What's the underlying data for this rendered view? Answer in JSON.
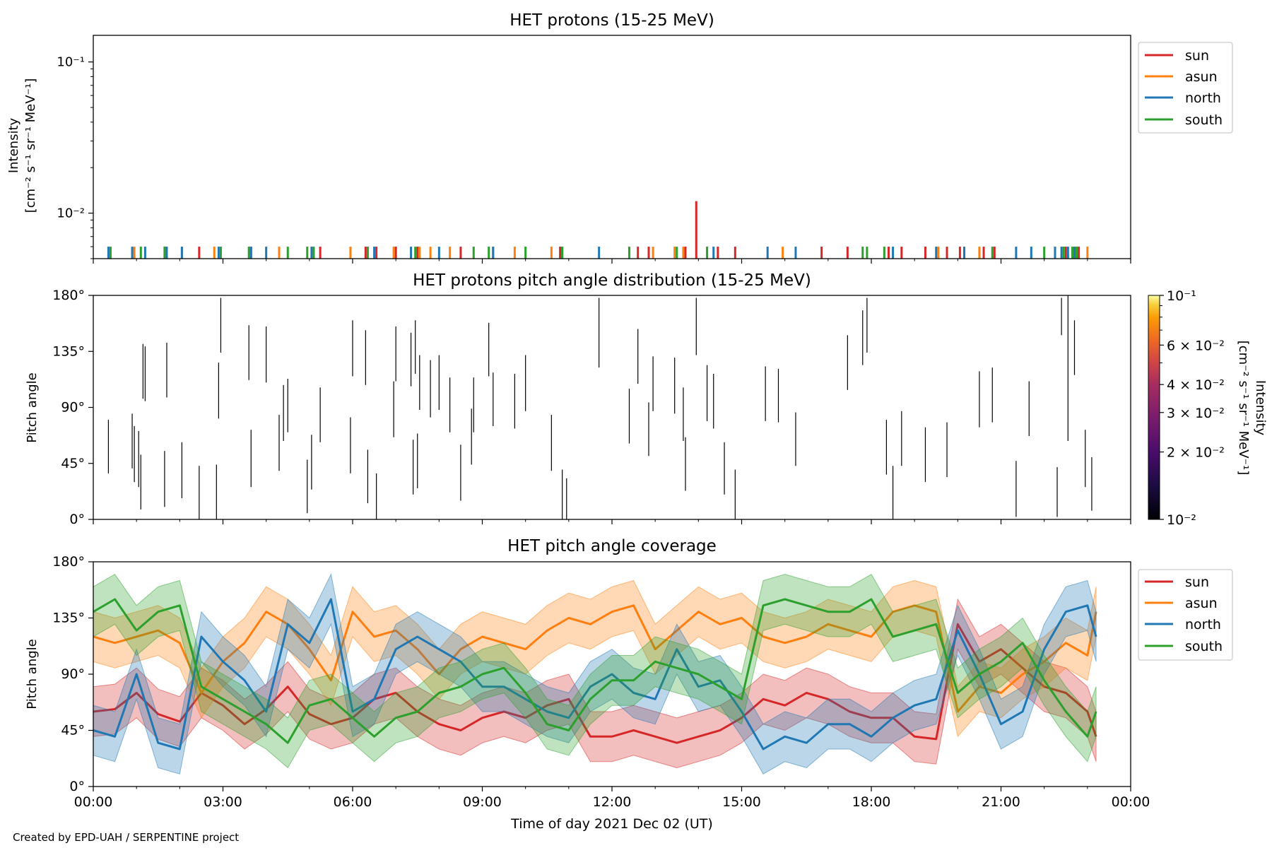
{
  "footer": {
    "credit": "Created by EPD-UAH / SERPENTINE project"
  },
  "colors": {
    "sun": "#d62728",
    "asun": "#ff7f0e",
    "north": "#1f77b4",
    "south": "#2ca02c"
  },
  "chart_data": [
    {
      "type": "bar",
      "title": "HET protons (15-25 MeV)",
      "ylabel_lines": [
        "Intensity",
        "[cm⁻² s⁻¹ sr⁻¹ MeV⁻¹]"
      ],
      "yscale": "log",
      "ylim": [
        0.005,
        0.15
      ],
      "yticks": [
        {
          "value": 0.01,
          "label": "10⁻²"
        },
        {
          "value": 0.1,
          "label": "10⁻¹"
        }
      ],
      "xlim": [
        0,
        24
      ],
      "legend": {
        "position": "top-right",
        "entries": [
          "sun",
          "asun",
          "north",
          "south"
        ]
      },
      "series": [
        {
          "name": "sun",
          "color": "#d62728",
          "x": [
            2.45,
            3.65,
            5.25,
            6.3,
            6.55,
            7.0,
            7.5,
            8.5,
            10.8,
            12.6,
            12.85,
            13.7,
            13.95,
            14.45,
            14.85,
            16.85,
            17.45,
            18.4,
            18.7,
            19.25,
            19.75,
            20.05,
            20.6,
            20.85,
            22.5,
            22.8
          ],
          "values": [
            0.006,
            0.006,
            0.006,
            0.006,
            0.006,
            0.006,
            0.006,
            0.006,
            0.006,
            0.006,
            0.006,
            0.006,
            0.012,
            0.006,
            0.006,
            0.006,
            0.006,
            0.006,
            0.006,
            0.006,
            0.006,
            0.006,
            0.006,
            0.006,
            0.006,
            0.006
          ]
        },
        {
          "name": "asun",
          "color": "#ff7f0e",
          "x": [
            0.95,
            1.65,
            2.05,
            2.8,
            4.3,
            5.95,
            6.95,
            7.55,
            7.8,
            8.25,
            9.25,
            9.75,
            10.6,
            12.95,
            13.45,
            13.65,
            15.95,
            19.55,
            20.5,
            22.7,
            23.0
          ],
          "values": [
            0.006,
            0.006,
            0.006,
            0.006,
            0.006,
            0.006,
            0.006,
            0.006,
            0.006,
            0.006,
            0.006,
            0.006,
            0.006,
            0.006,
            0.006,
            0.006,
            0.006,
            0.006,
            0.006,
            0.006,
            0.006
          ]
        },
        {
          "name": "north",
          "color": "#1f77b4",
          "x": [
            0.35,
            0.9,
            1.2,
            1.7,
            2.05,
            2.9,
            3.65,
            4.0,
            5.05,
            6.5,
            7.35,
            8.0,
            9.25,
            10.85,
            11.7,
            14.35,
            15.6,
            16.25,
            18.5,
            19.5,
            20.15,
            21.35,
            21.7,
            22.25,
            22.4,
            22.55,
            22.7
          ],
          "values": [
            0.006,
            0.006,
            0.006,
            0.006,
            0.006,
            0.006,
            0.006,
            0.006,
            0.006,
            0.006,
            0.006,
            0.006,
            0.006,
            0.006,
            0.006,
            0.006,
            0.006,
            0.006,
            0.006,
            0.006,
            0.006,
            0.006,
            0.006,
            0.006,
            0.006,
            0.006,
            0.006
          ]
        },
        {
          "name": "south",
          "color": "#2ca02c",
          "x": [
            0.4,
            1.1,
            1.65,
            2.95,
            3.6,
            4.5,
            4.95,
            5.1,
            6.35,
            7.45,
            8.8,
            9.15,
            10.0,
            10.85,
            12.4,
            13.5,
            14.2,
            17.8,
            17.9,
            18.3,
            20.8,
            22.0,
            22.45,
            22.65,
            22.75
          ],
          "values": [
            0.006,
            0.006,
            0.006,
            0.006,
            0.006,
            0.006,
            0.006,
            0.006,
            0.006,
            0.006,
            0.006,
            0.006,
            0.006,
            0.006,
            0.006,
            0.006,
            0.006,
            0.006,
            0.006,
            0.006,
            0.006,
            0.006,
            0.006,
            0.006,
            0.006
          ]
        }
      ]
    },
    {
      "type": "heatmap",
      "title": "HET protons pitch angle distribution (15-25 MeV)",
      "ylabel": "Pitch angle",
      "ylim": [
        0,
        180
      ],
      "yticks": [
        "0°",
        "45°",
        "90°",
        "135°",
        "180°"
      ],
      "xlim": [
        0,
        24
      ],
      "colorbar": {
        "label_lines": [
          "Intensity",
          "[cm⁻² s⁻¹ sr⁻¹ MeV⁻¹]"
        ],
        "scale": "log",
        "range": [
          0.01,
          0.1
        ],
        "ticks": [
          {
            "value": 0.01,
            "label": "10⁻²"
          },
          {
            "value": 0.02,
            "label": "2 × 10⁻²"
          },
          {
            "value": 0.03,
            "label": "3 × 10⁻²"
          },
          {
            "value": 0.04,
            "label": "4 × 10⁻²"
          },
          {
            "value": 0.06,
            "label": "6 × 10⁻²"
          },
          {
            "value": 0.1,
            "label": "10⁻¹"
          }
        ],
        "colormap": "inferno"
      },
      "segments": [
        {
          "t": 0.35,
          "lo": 37,
          "hi": 80
        },
        {
          "t": 0.9,
          "lo": 41,
          "hi": 85
        },
        {
          "t": 0.95,
          "lo": 30,
          "hi": 75
        },
        {
          "t": 1.05,
          "lo": 26,
          "hi": 71
        },
        {
          "t": 1.1,
          "lo": 8,
          "hi": 52
        },
        {
          "t": 1.15,
          "lo": 97,
          "hi": 141
        },
        {
          "t": 1.2,
          "lo": 95,
          "hi": 139
        },
        {
          "t": 1.65,
          "lo": 10,
          "hi": 55
        },
        {
          "t": 1.7,
          "lo": 98,
          "hi": 142
        },
        {
          "t": 2.05,
          "lo": 17,
          "hi": 62
        },
        {
          "t": 2.45,
          "lo": 0,
          "hi": 43
        },
        {
          "t": 2.85,
          "lo": 0,
          "hi": 44
        },
        {
          "t": 2.9,
          "lo": 81,
          "hi": 126
        },
        {
          "t": 2.95,
          "lo": 134,
          "hi": 178
        },
        {
          "t": 3.6,
          "lo": 112,
          "hi": 156
        },
        {
          "t": 3.65,
          "lo": 26,
          "hi": 72
        },
        {
          "t": 4.0,
          "lo": 110,
          "hi": 155
        },
        {
          "t": 4.3,
          "lo": 39,
          "hi": 84
        },
        {
          "t": 4.4,
          "lo": 63,
          "hi": 108
        },
        {
          "t": 4.5,
          "lo": 70,
          "hi": 113
        },
        {
          "t": 4.95,
          "lo": 5,
          "hi": 48
        },
        {
          "t": 5.05,
          "lo": 24,
          "hi": 68
        },
        {
          "t": 5.25,
          "lo": 62,
          "hi": 106
        },
        {
          "t": 5.95,
          "lo": 37,
          "hi": 82
        },
        {
          "t": 6.0,
          "lo": 115,
          "hi": 160
        },
        {
          "t": 6.3,
          "lo": 108,
          "hi": 152
        },
        {
          "t": 6.35,
          "lo": 13,
          "hi": 56
        },
        {
          "t": 6.55,
          "lo": 0,
          "hi": 37
        },
        {
          "t": 6.95,
          "lo": 66,
          "hi": 111
        },
        {
          "t": 7.0,
          "lo": 111,
          "hi": 155
        },
        {
          "t": 7.35,
          "lo": 107,
          "hi": 150
        },
        {
          "t": 7.4,
          "lo": 20,
          "hi": 64
        },
        {
          "t": 7.45,
          "lo": 117,
          "hi": 160
        },
        {
          "t": 7.5,
          "lo": 25,
          "hi": 69
        },
        {
          "t": 7.55,
          "lo": 88,
          "hi": 132
        },
        {
          "t": 7.8,
          "lo": 82,
          "hi": 128
        },
        {
          "t": 8.0,
          "lo": 88,
          "hi": 132
        },
        {
          "t": 8.25,
          "lo": 70,
          "hi": 114
        },
        {
          "t": 8.5,
          "lo": 15,
          "hi": 60
        },
        {
          "t": 8.75,
          "lo": 44,
          "hi": 89
        },
        {
          "t": 8.8,
          "lo": 70,
          "hi": 114
        },
        {
          "t": 9.15,
          "lo": 115,
          "hi": 158
        },
        {
          "t": 9.25,
          "lo": 75,
          "hi": 118
        },
        {
          "t": 9.75,
          "lo": 73,
          "hi": 117
        },
        {
          "t": 10.0,
          "lo": 87,
          "hi": 132
        },
        {
          "t": 10.6,
          "lo": 39,
          "hi": 84
        },
        {
          "t": 10.85,
          "lo": 0,
          "hi": 40
        },
        {
          "t": 10.95,
          "lo": 0,
          "hi": 33
        },
        {
          "t": 11.7,
          "lo": 122,
          "hi": 178
        },
        {
          "t": 12.4,
          "lo": 61,
          "hi": 105
        },
        {
          "t": 12.6,
          "lo": 109,
          "hi": 153
        },
        {
          "t": 12.85,
          "lo": 51,
          "hi": 94
        },
        {
          "t": 12.95,
          "lo": 87,
          "hi": 131
        },
        {
          "t": 13.45,
          "lo": 85,
          "hi": 130
        },
        {
          "t": 13.65,
          "lo": 63,
          "hi": 106
        },
        {
          "t": 13.7,
          "lo": 23,
          "hi": 66
        },
        {
          "t": 13.95,
          "lo": 132,
          "hi": 178
        },
        {
          "t": 14.2,
          "lo": 79,
          "hi": 124
        },
        {
          "t": 14.35,
          "lo": 73,
          "hi": 117
        },
        {
          "t": 14.6,
          "lo": 20,
          "hi": 62
        },
        {
          "t": 14.85,
          "lo": 0,
          "hi": 40
        },
        {
          "t": 15.55,
          "lo": 79,
          "hi": 123
        },
        {
          "t": 15.85,
          "lo": 78,
          "hi": 121
        },
        {
          "t": 16.25,
          "lo": 43,
          "hi": 86
        },
        {
          "t": 17.45,
          "lo": 104,
          "hi": 148
        },
        {
          "t": 17.8,
          "lo": 124,
          "hi": 168
        },
        {
          "t": 17.9,
          "lo": 134,
          "hi": 178
        },
        {
          "t": 18.35,
          "lo": 36,
          "hi": 80
        },
        {
          "t": 18.5,
          "lo": 0,
          "hi": 43
        },
        {
          "t": 18.7,
          "lo": 43,
          "hi": 87
        },
        {
          "t": 19.25,
          "lo": 30,
          "hi": 74
        },
        {
          "t": 19.75,
          "lo": 34,
          "hi": 78
        },
        {
          "t": 20.5,
          "lo": 74,
          "hi": 119
        },
        {
          "t": 20.8,
          "lo": 78,
          "hi": 122
        },
        {
          "t": 21.35,
          "lo": 2,
          "hi": 47
        },
        {
          "t": 21.65,
          "lo": 67,
          "hi": 111
        },
        {
          "t": 22.3,
          "lo": 2,
          "hi": 42
        },
        {
          "t": 22.4,
          "lo": 148,
          "hi": 178
        },
        {
          "t": 22.55,
          "lo": 63,
          "hi": 180
        },
        {
          "t": 22.7,
          "lo": 116,
          "hi": 160
        },
        {
          "t": 22.95,
          "lo": 26,
          "hi": 72
        },
        {
          "t": 23.1,
          "lo": 7,
          "hi": 50
        }
      ]
    },
    {
      "type": "line",
      "title": "HET pitch angle coverage",
      "ylabel": "Pitch angle",
      "ylim": [
        0,
        180
      ],
      "yticks": [
        "0°",
        "45°",
        "90°",
        "135°",
        "180°"
      ],
      "xlabel": "Time of day 2021 Dec 02 (UT)",
      "xlim": [
        0,
        24
      ],
      "xticks": [
        "00:00",
        "03:00",
        "06:00",
        "09:00",
        "12:00",
        "15:00",
        "18:00",
        "21:00",
        "00:00"
      ],
      "legend": {
        "position": "top-right",
        "entries": [
          "sun",
          "asun",
          "north",
          "south"
        ]
      },
      "x": [
        0,
        0.5,
        1,
        1.5,
        2,
        2.5,
        3,
        3.5,
        4,
        4.5,
        5,
        5.5,
        6,
        6.5,
        7,
        7.5,
        8,
        8.5,
        9,
        9.5,
        10,
        10.5,
        11,
        11.5,
        12,
        12.5,
        13,
        13.5,
        14,
        14.5,
        15,
        15.5,
        16,
        16.5,
        17,
        17.5,
        18,
        18.5,
        19,
        19.5,
        20,
        20.5,
        21,
        21.5,
        22,
        22.5,
        23,
        23.2
      ],
      "band_halfwidth_deg": 20,
      "series": [
        {
          "name": "sun",
          "values": [
            60,
            62,
            75,
            58,
            52,
            75,
            65,
            50,
            62,
            80,
            58,
            50,
            55,
            70,
            75,
            60,
            50,
            45,
            55,
            60,
            55,
            65,
            70,
            40,
            40,
            45,
            40,
            35,
            40,
            45,
            55,
            70,
            65,
            75,
            70,
            60,
            55,
            55,
            40,
            38,
            130,
            100,
            110,
            95,
            80,
            75,
            60,
            40
          ]
        },
        {
          "name": "asun",
          "values": [
            120,
            115,
            120,
            125,
            115,
            75,
            100,
            115,
            140,
            130,
            110,
            85,
            140,
            120,
            125,
            110,
            90,
            110,
            120,
            115,
            110,
            125,
            135,
            130,
            140,
            145,
            110,
            125,
            140,
            130,
            135,
            120,
            115,
            120,
            130,
            125,
            120,
            140,
            145,
            140,
            60,
            80,
            75,
            90,
            100,
            115,
            105,
            140
          ]
        },
        {
          "name": "north",
          "values": [
            45,
            40,
            90,
            35,
            30,
            120,
            100,
            85,
            60,
            130,
            115,
            150,
            60,
            70,
            110,
            120,
            110,
            100,
            80,
            80,
            70,
            60,
            55,
            80,
            90,
            75,
            70,
            110,
            80,
            85,
            60,
            30,
            40,
            35,
            50,
            50,
            40,
            55,
            65,
            70,
            125,
            90,
            50,
            60,
            110,
            140,
            145,
            120
          ]
        },
        {
          "name": "south",
          "values": [
            140,
            150,
            125,
            140,
            145,
            80,
            70,
            60,
            50,
            35,
            65,
            70,
            55,
            40,
            55,
            60,
            75,
            80,
            90,
            95,
            75,
            50,
            45,
            70,
            85,
            85,
            100,
            95,
            90,
            80,
            70,
            145,
            150,
            145,
            140,
            140,
            150,
            120,
            125,
            130,
            75,
            90,
            100,
            115,
            85,
            60,
            40,
            60
          ]
        }
      ]
    }
  ]
}
